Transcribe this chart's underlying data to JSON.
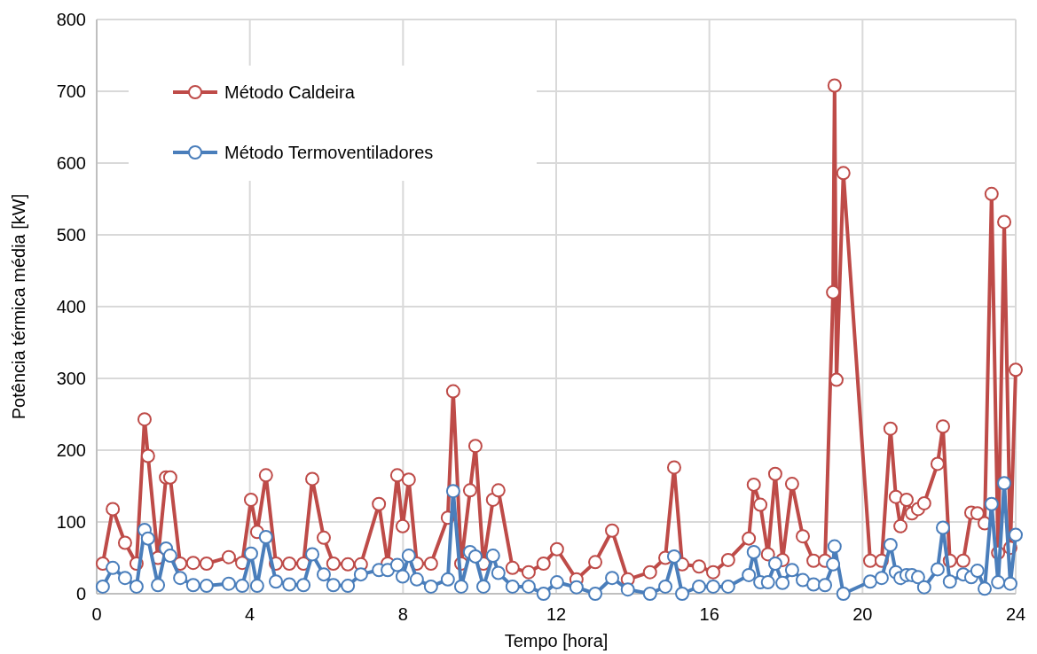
{
  "chart_data": {
    "type": "line",
    "xlabel": "Tempo [hora]",
    "ylabel": "Potência térmica média [kW]",
    "xlim": [
      0,
      24
    ],
    "xticks": [
      0,
      4,
      8,
      12,
      16,
      20,
      24
    ],
    "ylim": [
      0,
      800
    ],
    "yticks": [
      0,
      100,
      200,
      300,
      400,
      500,
      600,
      700,
      800
    ],
    "grid": true,
    "legend": "top left",
    "marker": "circle",
    "line_style": "solid",
    "series": [
      {
        "name": "Método Caldeira",
        "color": "#be4b48",
        "x": [
          0.16,
          0.42,
          0.74,
          1.04,
          1.25,
          1.34,
          1.6,
          1.81,
          1.92,
          2.18,
          2.52,
          2.87,
          3.45,
          3.8,
          4.03,
          4.19,
          4.42,
          4.68,
          5.03,
          5.4,
          5.63,
          5.93,
          6.18,
          6.56,
          6.9,
          7.37,
          7.6,
          7.85,
          7.99,
          8.15,
          8.36,
          8.73,
          9.17,
          9.31,
          9.52,
          9.75,
          9.89,
          10.1,
          10.35,
          10.49,
          10.86,
          11.28,
          11.67,
          12.02,
          12.53,
          13.02,
          13.46,
          13.87,
          14.45,
          14.85,
          15.08,
          15.29,
          15.73,
          16.1,
          16.49,
          17.03,
          17.16,
          17.33,
          17.53,
          17.72,
          17.91,
          18.16,
          18.44,
          18.72,
          19.02,
          19.23,
          19.27,
          19.32,
          19.5,
          20.2,
          20.5,
          20.73,
          20.87,
          20.99,
          21.15,
          21.29,
          21.45,
          21.61,
          21.96,
          22.1,
          22.28,
          22.63,
          22.84,
          23.0,
          23.19,
          23.37,
          23.54,
          23.7,
          23.86,
          24.0
        ],
        "values": [
          42,
          118,
          71,
          42,
          243,
          192,
          50,
          162,
          162,
          42,
          43,
          42,
          51,
          43,
          131,
          86,
          165,
          42,
          42,
          42,
          160,
          78,
          42,
          41,
          41,
          125,
          42,
          165,
          94,
          159,
          42,
          42,
          106,
          282,
          42,
          144,
          206,
          42,
          131,
          144,
          36,
          30,
          42,
          62,
          20,
          44,
          88,
          20,
          30,
          50,
          176,
          41,
          38,
          30,
          47,
          77,
          152,
          124,
          55,
          167,
          47,
          153,
          80,
          46,
          46,
          420,
          708,
          298,
          586,
          46,
          46,
          230,
          135,
          94,
          131,
          112,
          118,
          126,
          181,
          233,
          46,
          46,
          113,
          112,
          98,
          557,
          57,
          518,
          64,
          312
        ]
      },
      {
        "name": "Método Termoventiladores",
        "color": "#4a7ebb",
        "x": [
          0.16,
          0.42,
          0.74,
          1.04,
          1.25,
          1.34,
          1.6,
          1.81,
          1.92,
          2.18,
          2.52,
          2.87,
          3.45,
          3.8,
          4.03,
          4.19,
          4.42,
          4.68,
          5.03,
          5.4,
          5.63,
          5.93,
          6.18,
          6.56,
          6.9,
          7.37,
          7.6,
          7.85,
          7.99,
          8.15,
          8.36,
          8.73,
          9.17,
          9.31,
          9.52,
          9.75,
          9.89,
          10.1,
          10.35,
          10.49,
          10.86,
          11.28,
          11.67,
          12.02,
          12.53,
          13.02,
          13.46,
          13.87,
          14.45,
          14.85,
          15.08,
          15.29,
          15.73,
          16.1,
          16.49,
          17.03,
          17.16,
          17.33,
          17.53,
          17.72,
          17.91,
          18.16,
          18.44,
          18.72,
          19.02,
          19.23,
          19.27,
          19.5,
          20.2,
          20.5,
          20.73,
          20.87,
          20.99,
          21.15,
          21.29,
          21.45,
          21.61,
          21.96,
          22.1,
          22.28,
          22.63,
          22.84,
          23.0,
          23.19,
          23.37,
          23.54,
          23.7,
          23.86,
          24.0
        ],
        "values": [
          10,
          36,
          22,
          10,
          89,
          77,
          12,
          63,
          53,
          22,
          12,
          11,
          14,
          11,
          56,
          11,
          79,
          17,
          13,
          12,
          55,
          27,
          12,
          11,
          27,
          33,
          33,
          40,
          24,
          53,
          20,
          10,
          20,
          143,
          10,
          58,
          52,
          10,
          53,
          29,
          10,
          10,
          0,
          16,
          9,
          0,
          22,
          6,
          0,
          10,
          52,
          0,
          10,
          10,
          10,
          26,
          58,
          16,
          16,
          42,
          15,
          33,
          19,
          13,
          12,
          41,
          66,
          0,
          17,
          22,
          68,
          30,
          22,
          26,
          26,
          23,
          9,
          34,
          92,
          17,
          27,
          23,
          32,
          7,
          125,
          16,
          154,
          14,
          82
        ]
      }
    ]
  }
}
